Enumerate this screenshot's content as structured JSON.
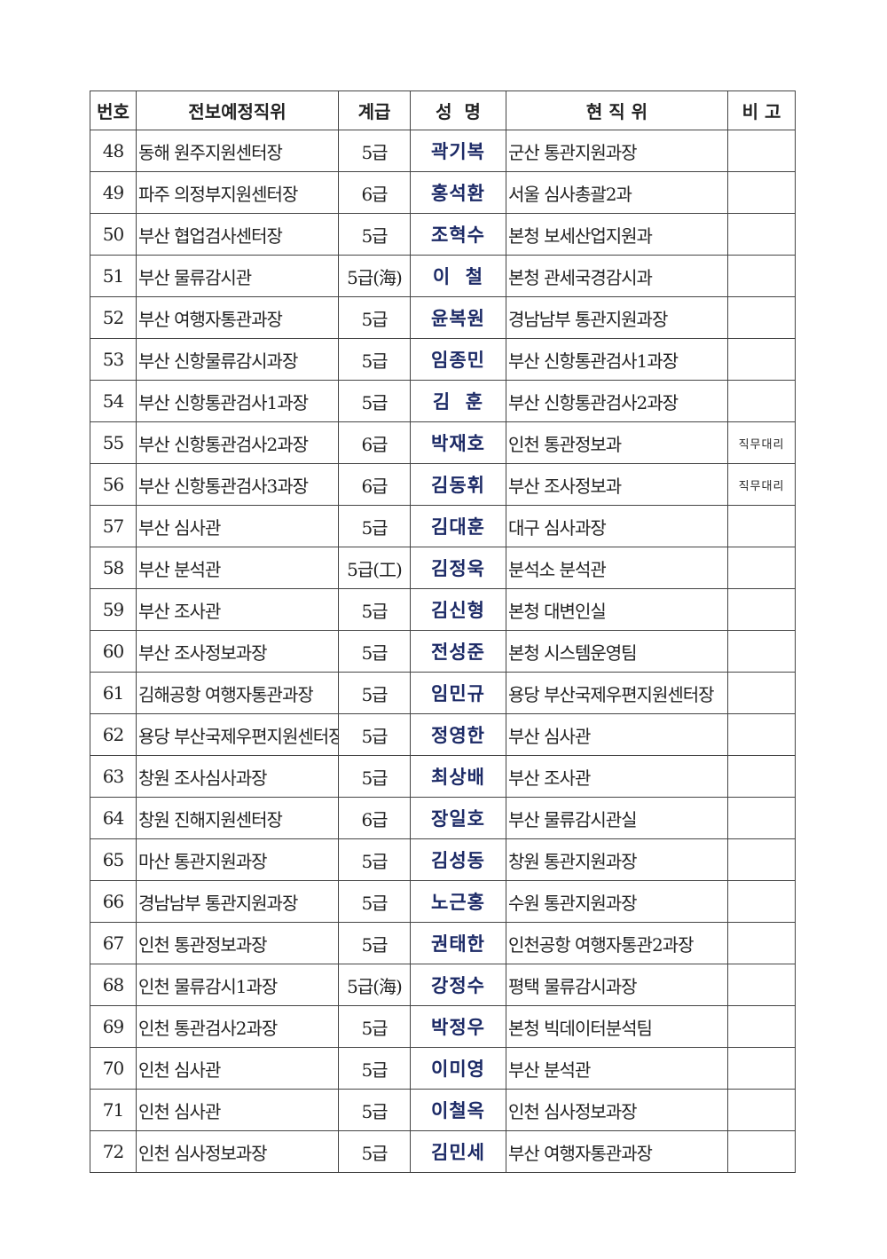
{
  "table": {
    "headers": [
      "번호",
      "전보예정직위",
      "계급",
      "성  명",
      "현 직 위",
      "비 고"
    ],
    "rows": [
      {
        "no": "48",
        "new_position": "동해 원주지원센터장",
        "grade": "5급",
        "name": "곽기복",
        "current_position": "군산 통관지원과장",
        "note": ""
      },
      {
        "no": "49",
        "new_position": "파주 의정부지원센터장",
        "grade": "6급",
        "name": "홍석환",
        "current_position": "서울 심사총괄2과",
        "note": ""
      },
      {
        "no": "50",
        "new_position": "부산 협업검사센터장",
        "grade": "5급",
        "name": "조혁수",
        "current_position": "본청 보세산업지원과",
        "note": ""
      },
      {
        "no": "51",
        "new_position": "부산 물류감시관",
        "grade": "5급(海)",
        "name": "이  철",
        "current_position": "본청 관세국경감시과",
        "note": ""
      },
      {
        "no": "52",
        "new_position": "부산 여행자통관과장",
        "grade": "5급",
        "name": "윤복원",
        "current_position": "경남남부 통관지원과장",
        "note": ""
      },
      {
        "no": "53",
        "new_position": "부산 신항물류감시과장",
        "grade": "5급",
        "name": "임종민",
        "current_position": "부산 신항통관검사1과장",
        "note": ""
      },
      {
        "no": "54",
        "new_position": "부산 신항통관검사1과장",
        "grade": "5급",
        "name": "김  훈",
        "current_position": "부산 신항통관검사2과장",
        "note": ""
      },
      {
        "no": "55",
        "new_position": "부산 신항통관검사2과장",
        "grade": "6급",
        "name": "박재호",
        "current_position": "인천 통관정보과",
        "note": "직무대리"
      },
      {
        "no": "56",
        "new_position": "부산 신항통관검사3과장",
        "grade": "6급",
        "name": "김동휘",
        "current_position": "부산 조사정보과",
        "note": "직무대리"
      },
      {
        "no": "57",
        "new_position": "부산 심사관",
        "grade": "5급",
        "name": "김대훈",
        "current_position": "대구 심사과장",
        "note": ""
      },
      {
        "no": "58",
        "new_position": "부산 분석관",
        "grade": "5급(工)",
        "name": "김정욱",
        "current_position": "분석소 분석관",
        "note": ""
      },
      {
        "no": "59",
        "new_position": "부산 조사관",
        "grade": "5급",
        "name": "김신형",
        "current_position": "본청 대변인실",
        "note": ""
      },
      {
        "no": "60",
        "new_position": "부산 조사정보과장",
        "grade": "5급",
        "name": "전성준",
        "current_position": "본청 시스템운영팀",
        "note": ""
      },
      {
        "no": "61",
        "new_position": "김해공항 여행자통관과장",
        "grade": "5급",
        "name": "임민규",
        "current_position": "용당 부산국제우편지원센터장",
        "note": ""
      },
      {
        "no": "62",
        "new_position": "용당 부산국제우편지원센터장",
        "grade": "5급",
        "name": "정영한",
        "current_position": "부산 심사관",
        "note": ""
      },
      {
        "no": "63",
        "new_position": "창원 조사심사과장",
        "grade": "5급",
        "name": "최상배",
        "current_position": "부산 조사관",
        "note": ""
      },
      {
        "no": "64",
        "new_position": "창원 진해지원센터장",
        "grade": "6급",
        "name": "장일호",
        "current_position": "부산 물류감시관실",
        "note": ""
      },
      {
        "no": "65",
        "new_position": "마산 통관지원과장",
        "grade": "5급",
        "name": "김성동",
        "current_position": "창원 통관지원과장",
        "note": ""
      },
      {
        "no": "66",
        "new_position": "경남남부 통관지원과장",
        "grade": "5급",
        "name": "노근홍",
        "current_position": "수원 통관지원과장",
        "note": ""
      },
      {
        "no": "67",
        "new_position": "인천 통관정보과장",
        "grade": "5급",
        "name": "권태한",
        "current_position": "인천공항 여행자통관2과장",
        "note": ""
      },
      {
        "no": "68",
        "new_position": "인천 물류감시1과장",
        "grade": "5급(海)",
        "name": "강정수",
        "current_position": "평택 물류감시과장",
        "note": ""
      },
      {
        "no": "69",
        "new_position": "인천 통관검사2과장",
        "grade": "5급",
        "name": "박정우",
        "current_position": "본청 빅데이터분석팀",
        "note": ""
      },
      {
        "no": "70",
        "new_position": "인천 심사관",
        "grade": "5급",
        "name": "이미영",
        "current_position": "부산 분석관",
        "note": ""
      },
      {
        "no": "71",
        "new_position": "인천 심사관",
        "grade": "5급",
        "name": "이철옥",
        "current_position": "인천 심사정보과장",
        "note": ""
      },
      {
        "no": "72",
        "new_position": "인천 심사정보과장",
        "grade": "5급",
        "name": "김민세",
        "current_position": "부산 여행자통관과장",
        "note": ""
      }
    ]
  }
}
